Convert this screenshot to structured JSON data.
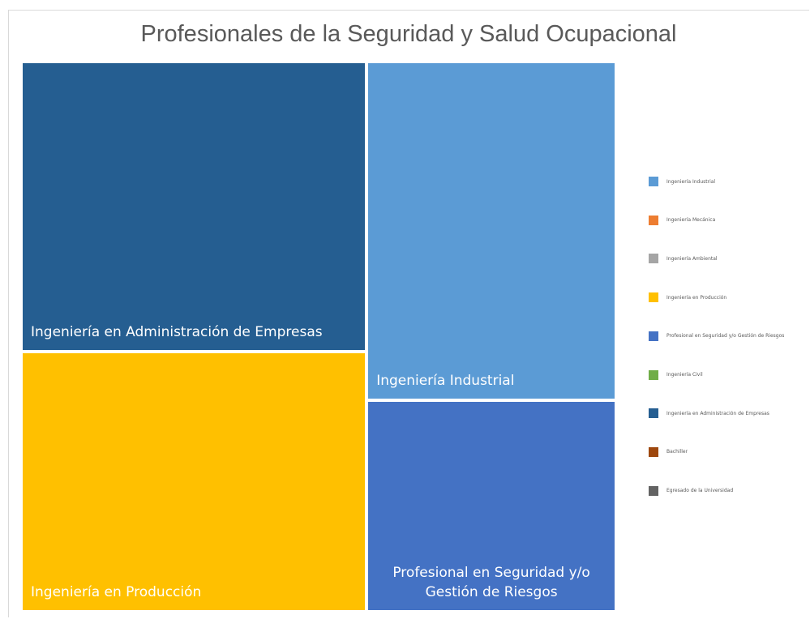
{
  "chart_data": {
    "type": "treemap",
    "title": "Profesionales de la Seguridad y Salud Ocupacional",
    "categories": [
      "Ingeniería Industrial",
      "Ingeniería Mecánica",
      "Ingeniería Ambiental",
      "Ingeniería en Producción",
      "Profesional en Seguridad y/o Gestión de Riesgos",
      "Ingeniería Civil",
      "Ingeniería en Administración de Empresas",
      "Bachiller",
      "Egresado de la Universidad"
    ],
    "values": [
      16,
      0,
      0,
      17,
      10,
      0,
      19,
      0,
      0
    ],
    "colors": [
      "#5b9bd5",
      "#ed7d31",
      "#a5a5a5",
      "#ffc000",
      "#4472c4",
      "#70ad47",
      "#255e91",
      "#9e480e",
      "#636363"
    ],
    "legend": "right"
  }
}
